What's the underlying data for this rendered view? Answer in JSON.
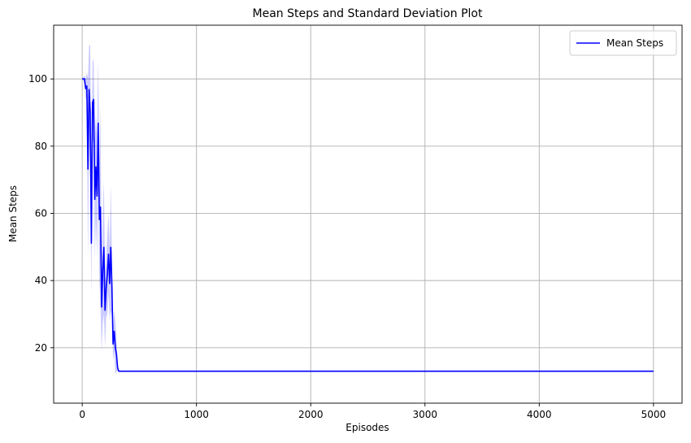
{
  "chart_data": {
    "type": "line",
    "title": "Mean Steps and Standard Deviation Plot",
    "xlabel": "Episodes",
    "ylabel": "Mean Steps",
    "xlim": [
      -250,
      5250
    ],
    "ylim": [
      3.5,
      116
    ],
    "xticks": [
      0,
      1000,
      2000,
      3000,
      4000,
      5000
    ],
    "yticks": [
      20,
      40,
      60,
      80,
      100
    ],
    "grid": true,
    "legend_position": "top-right",
    "colors": {
      "line": "#0000ff",
      "band": "#0000ff",
      "grid": "#b0b0b0"
    },
    "series": [
      {
        "name": "Mean Steps",
        "x": [
          0,
          20,
          30,
          40,
          50,
          60,
          70,
          80,
          90,
          100,
          110,
          120,
          130,
          140,
          150,
          160,
          170,
          180,
          190,
          200,
          210,
          220,
          230,
          240,
          250,
          260,
          270,
          280,
          290,
          300,
          310,
          320,
          330,
          340,
          350,
          400,
          1000,
          2000,
          3000,
          4000,
          5000
        ],
        "y": [
          100,
          100,
          97,
          98,
          73,
          97,
          90,
          51,
          93,
          94,
          64,
          74,
          65,
          87,
          58,
          62,
          32,
          43,
          50,
          31,
          38,
          42,
          48,
          39,
          50,
          38,
          21,
          25,
          20,
          18,
          14,
          13,
          13,
          13,
          13,
          13,
          13,
          13,
          13,
          13,
          13
        ],
        "std": [
          0,
          1,
          3,
          4,
          27,
          13,
          20,
          16,
          12,
          12,
          18,
          15,
          18,
          19,
          18,
          30,
          13,
          16,
          20,
          11,
          9,
          12,
          12,
          11,
          19,
          9,
          5,
          6,
          8,
          5,
          1,
          0,
          0,
          0,
          0,
          0,
          0,
          0,
          0,
          0,
          0
        ]
      }
    ]
  }
}
